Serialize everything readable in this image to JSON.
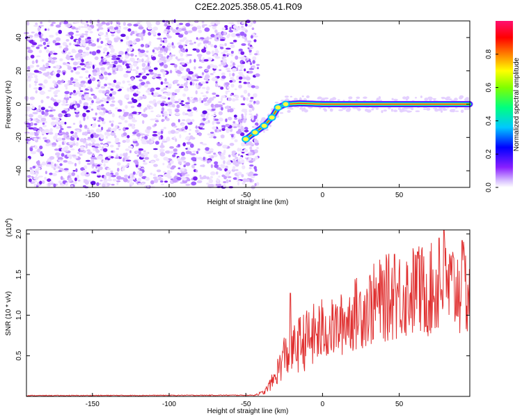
{
  "title": "C2E2.2025.358.05.41.R09",
  "chart_data": [
    {
      "type": "heatmap",
      "xlabel": "Height of straight line (km)",
      "ylabel": "Frequency (Hz)",
      "xlim": [
        -193,
        96
      ],
      "ylim": [
        -50,
        50
      ],
      "x_ticks": [
        -150,
        -100,
        -50,
        0,
        50
      ],
      "y_ticks": [
        -40,
        -20,
        0,
        20,
        40
      ],
      "colorbar": {
        "label": "Normalized spectral amplitude",
        "range": [
          0,
          1
        ],
        "ticks": [
          0.0,
          0.2,
          0.4,
          0.6,
          0.8
        ],
        "colors": [
          "#ffffff",
          "#c8a0ff",
          "#6a00ff",
          "#0000ff",
          "#00d0ff",
          "#00ff60",
          "#ffff00",
          "#ff8000",
          "#ff0000",
          "#ff1070"
        ]
      },
      "noise_region_x": [
        -193,
        -42
      ],
      "ridge": [
        {
          "x": -50,
          "y": -21
        },
        {
          "x": -44,
          "y": -17
        },
        {
          "x": -38,
          "y": -13
        },
        {
          "x": -33,
          "y": -8
        },
        {
          "x": -29,
          "y": -2
        },
        {
          "x": -24,
          "y": 0
        },
        {
          "x": -15,
          "y": 0.5
        },
        {
          "x": 0,
          "y": 0
        },
        {
          "x": 30,
          "y": 0
        },
        {
          "x": 60,
          "y": 0
        },
        {
          "x": 96,
          "y": 0
        }
      ]
    },
    {
      "type": "line",
      "xlabel": "Height of straight line (km)",
      "ylabel": "SNR (10 * v/v)",
      "y_multiplier": "(x10",
      "y_multiplier_exp": "4",
      "y_multiplier_close": ")",
      "xlim": [
        -193,
        96
      ],
      "ylim": [
        0,
        2.05
      ],
      "x_ticks": [
        -150,
        -100,
        -50,
        0,
        50
      ],
      "y_ticks": [
        0.5,
        1.0,
        1.5,
        2.0
      ],
      "color": "#e03030",
      "series": [
        {
          "envelope": [
            {
              "x": -193,
              "y": 0.01
            },
            {
              "x": -45,
              "y": 0.015
            },
            {
              "x": -38,
              "y": 0.05
            },
            {
              "x": -32,
              "y": 0.2
            },
            {
              "x": -25,
              "y": 0.5
            },
            {
              "x": -20,
              "y": 0.55
            },
            {
              "x": -15,
              "y": 0.65
            },
            {
              "x": -10,
              "y": 0.7
            },
            {
              "x": 0,
              "y": 0.8
            },
            {
              "x": 10,
              "y": 0.85
            },
            {
              "x": 20,
              "y": 1.0
            },
            {
              "x": 30,
              "y": 1.1
            },
            {
              "x": 40,
              "y": 1.2
            },
            {
              "x": 50,
              "y": 1.25
            },
            {
              "x": 60,
              "y": 1.3
            },
            {
              "x": 70,
              "y": 1.3
            },
            {
              "x": 80,
              "y": 1.35
            },
            {
              "x": 96,
              "y": 1.3
            }
          ],
          "peaks": [
            {
              "x": -21,
              "y": 1.27
            },
            {
              "x": 47,
              "y": 1.75
            },
            {
              "x": 62,
              "y": 1.78
            },
            {
              "x": 76,
              "y": 1.95
            },
            {
              "x": 79,
              "y": 2.05
            },
            {
              "x": 91,
              "y": 1.92
            }
          ]
        }
      ]
    }
  ]
}
